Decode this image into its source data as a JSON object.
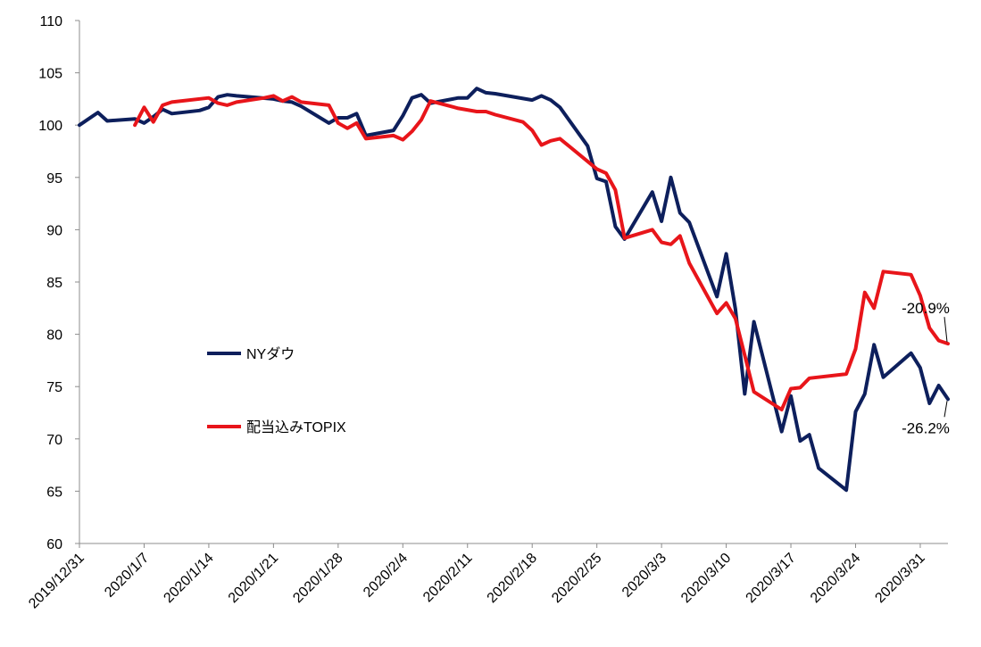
{
  "chart_data": {
    "type": "line",
    "title": "",
    "xlabel": "",
    "ylabel": "",
    "ylim": [
      60,
      110
    ],
    "yticks": [
      60,
      65,
      70,
      75,
      80,
      85,
      90,
      95,
      100,
      105,
      110
    ],
    "ytick_labels": [
      "60",
      "65",
      "70",
      "75",
      "80",
      "85",
      "90",
      "95",
      "100",
      "105",
      "110"
    ],
    "xlim": [
      "2019-12-31",
      "2020-04-03"
    ],
    "xticks": [
      "2019-12-31",
      "2020-01-07",
      "2020-01-14",
      "2020-01-21",
      "2020-01-28",
      "2020-02-04",
      "2020-02-11",
      "2020-02-18",
      "2020-02-25",
      "2020-03-03",
      "2020-03-10",
      "2020-03-17",
      "2020-03-24",
      "2020-03-31"
    ],
    "xtick_labels": [
      "2019/12/31",
      "2020/1/7",
      "2020/1/14",
      "2020/1/21",
      "2020/1/28",
      "2020/2/4",
      "2020/2/11",
      "2020/2/18",
      "2020/2/25",
      "2020/3/3",
      "2020/3/10",
      "2020/3/17",
      "2020/3/24",
      "2020/3/31"
    ],
    "grid": false,
    "legend_position": "left-center",
    "series": [
      {
        "name": "NYダウ",
        "color": "#0d1f5c",
        "points": [
          [
            "2019-12-31",
            100.0
          ],
          [
            "2020-01-02",
            101.2
          ],
          [
            "2020-01-03",
            100.4
          ],
          [
            "2020-01-06",
            100.6
          ],
          [
            "2020-01-07",
            100.2
          ],
          [
            "2020-01-08",
            100.8
          ],
          [
            "2020-01-09",
            101.5
          ],
          [
            "2020-01-10",
            101.1
          ],
          [
            "2020-01-13",
            101.4
          ],
          [
            "2020-01-14",
            101.7
          ],
          [
            "2020-01-15",
            102.7
          ],
          [
            "2020-01-16",
            102.9
          ],
          [
            "2020-01-17",
            102.8
          ],
          [
            "2020-01-21",
            102.5
          ],
          [
            "2020-01-22",
            102.3
          ],
          [
            "2020-01-23",
            102.2
          ],
          [
            "2020-01-24",
            101.8
          ],
          [
            "2020-01-27",
            100.2
          ],
          [
            "2020-01-28",
            100.7
          ],
          [
            "2020-01-29",
            100.7
          ],
          [
            "2020-01-30",
            101.1
          ],
          [
            "2020-01-31",
            99.0
          ],
          [
            "2020-02-03",
            99.5
          ],
          [
            "2020-02-04",
            100.9
          ],
          [
            "2020-02-05",
            102.6
          ],
          [
            "2020-02-06",
            102.9
          ],
          [
            "2020-02-07",
            102.1
          ],
          [
            "2020-02-10",
            102.6
          ],
          [
            "2020-02-11",
            102.6
          ],
          [
            "2020-02-12",
            103.5
          ],
          [
            "2020-02-13",
            103.1
          ],
          [
            "2020-02-14",
            103.0
          ],
          [
            "2020-02-18",
            102.4
          ],
          [
            "2020-02-19",
            102.8
          ],
          [
            "2020-02-20",
            102.4
          ],
          [
            "2020-02-21",
            101.7
          ],
          [
            "2020-02-24",
            98.0
          ],
          [
            "2020-02-25",
            94.9
          ],
          [
            "2020-02-26",
            94.6
          ],
          [
            "2020-02-27",
            90.3
          ],
          [
            "2020-02-28",
            89.1
          ],
          [
            "2020-03-02",
            93.6
          ],
          [
            "2020-03-03",
            90.8
          ],
          [
            "2020-03-04",
            95.0
          ],
          [
            "2020-03-05",
            91.6
          ],
          [
            "2020-03-06",
            90.7
          ],
          [
            "2020-03-09",
            83.6
          ],
          [
            "2020-03-10",
            87.7
          ],
          [
            "2020-03-11",
            82.4
          ],
          [
            "2020-03-12",
            74.3
          ],
          [
            "2020-03-13",
            81.2
          ],
          [
            "2020-03-16",
            70.7
          ],
          [
            "2020-03-17",
            74.1
          ],
          [
            "2020-03-18",
            69.8
          ],
          [
            "2020-03-19",
            70.4
          ],
          [
            "2020-03-20",
            67.2
          ],
          [
            "2020-03-23",
            65.1
          ],
          [
            "2020-03-24",
            72.6
          ],
          [
            "2020-03-25",
            74.3
          ],
          [
            "2020-03-26",
            79.0
          ],
          [
            "2020-03-27",
            75.9
          ],
          [
            "2020-03-30",
            78.2
          ],
          [
            "2020-03-31",
            76.8
          ],
          [
            "2020-04-01",
            73.4
          ],
          [
            "2020-04-02",
            75.1
          ],
          [
            "2020-04-03",
            73.8
          ]
        ]
      },
      {
        "name": "配当込みTOPIX",
        "color": "#e8151a",
        "points": [
          [
            "2020-01-06",
            100.0
          ],
          [
            "2020-01-07",
            101.7
          ],
          [
            "2020-01-08",
            100.3
          ],
          [
            "2020-01-09",
            101.9
          ],
          [
            "2020-01-10",
            102.2
          ],
          [
            "2020-01-14",
            102.6
          ],
          [
            "2020-01-15",
            102.1
          ],
          [
            "2020-01-16",
            101.9
          ],
          [
            "2020-01-17",
            102.2
          ],
          [
            "2020-01-20",
            102.6
          ],
          [
            "2020-01-21",
            102.8
          ],
          [
            "2020-01-22",
            102.3
          ],
          [
            "2020-01-23",
            102.7
          ],
          [
            "2020-01-24",
            102.2
          ],
          [
            "2020-01-27",
            101.9
          ],
          [
            "2020-01-28",
            100.2
          ],
          [
            "2020-01-29",
            99.7
          ],
          [
            "2020-01-30",
            100.2
          ],
          [
            "2020-01-31",
            98.7
          ],
          [
            "2020-02-03",
            99.0
          ],
          [
            "2020-02-04",
            98.6
          ],
          [
            "2020-02-05",
            99.4
          ],
          [
            "2020-02-06",
            100.5
          ],
          [
            "2020-02-07",
            102.3
          ],
          [
            "2020-02-10",
            101.6
          ],
          [
            "2020-02-12",
            101.3
          ],
          [
            "2020-02-13",
            101.3
          ],
          [
            "2020-02-14",
            101.0
          ],
          [
            "2020-02-17",
            100.3
          ],
          [
            "2020-02-18",
            99.5
          ],
          [
            "2020-02-19",
            98.1
          ],
          [
            "2020-02-20",
            98.5
          ],
          [
            "2020-02-21",
            98.7
          ],
          [
            "2020-02-25",
            95.8
          ],
          [
            "2020-02-26",
            95.4
          ],
          [
            "2020-02-27",
            93.8
          ],
          [
            "2020-02-28",
            89.2
          ],
          [
            "2020-03-02",
            90.0
          ],
          [
            "2020-03-03",
            88.8
          ],
          [
            "2020-03-04",
            88.6
          ],
          [
            "2020-03-05",
            89.4
          ],
          [
            "2020-03-06",
            86.8
          ],
          [
            "2020-03-09",
            82.0
          ],
          [
            "2020-03-10",
            83.0
          ],
          [
            "2020-03-11",
            81.5
          ],
          [
            "2020-03-12",
            78.0
          ],
          [
            "2020-03-13",
            74.5
          ],
          [
            "2020-03-16",
            72.8
          ],
          [
            "2020-03-17",
            74.8
          ],
          [
            "2020-03-18",
            74.9
          ],
          [
            "2020-03-19",
            75.8
          ],
          [
            "2020-03-23",
            76.2
          ],
          [
            "2020-03-24",
            78.6
          ],
          [
            "2020-03-25",
            84.0
          ],
          [
            "2020-03-26",
            82.5
          ],
          [
            "2020-03-27",
            86.0
          ],
          [
            "2020-03-30",
            85.7
          ],
          [
            "2020-03-31",
            83.7
          ],
          [
            "2020-04-01",
            80.6
          ],
          [
            "2020-04-02",
            79.4
          ],
          [
            "2020-04-03",
            79.1
          ]
        ]
      }
    ],
    "annotations": [
      {
        "text": "-20.9%",
        "series": "配当込みTOPIX"
      },
      {
        "text": "-26.2%",
        "series": "NYダウ"
      }
    ]
  }
}
